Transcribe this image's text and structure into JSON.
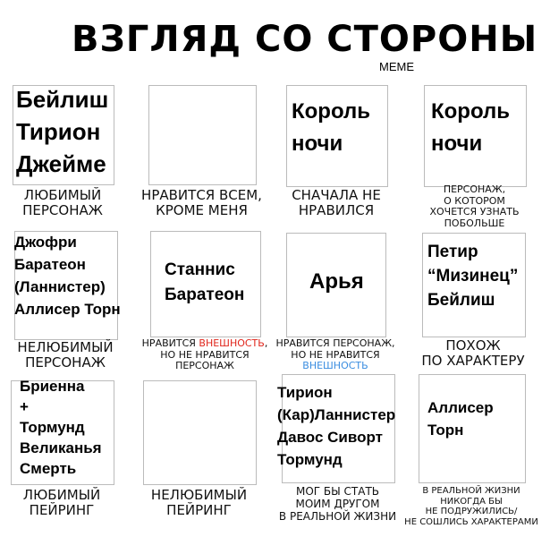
{
  "title": "ВЗГЛЯД СО СТОРОНЫ",
  "subtitle": "МЕМЕ",
  "cells": [
    {
      "lines": [
        "Бейлиш",
        "Тирион",
        "Джейме"
      ],
      "caption": [
        "ЛЮБИМЫЙ",
        "ПЕРСОНАЖ"
      ]
    },
    {
      "lines": [],
      "caption": [
        "НРАВИТСЯ ВСЕМ,",
        "КРОМЕ МЕНЯ"
      ]
    },
    {
      "lines": [
        "Король",
        "ночи"
      ],
      "caption": [
        "СНАЧАЛА НЕ",
        "НРАВИЛСЯ"
      ]
    },
    {
      "lines": [
        "Король",
        "ночи"
      ],
      "caption": [
        "ПЕРСОНАЖ,",
        "О КОТОРОМ",
        "ХОЧЕТСЯ УЗНАТЬ",
        "ПОБОЛЬШЕ"
      ]
    },
    {
      "lines": [
        "Джофри",
        "Баратеон",
        "(Ланнистер)",
        "Аллисер Торн"
      ],
      "caption": [
        "НЕЛЮБИМЫЙ",
        "ПЕРСОНАЖ"
      ]
    },
    {
      "lines": [
        "Станнис",
        "Баратеон"
      ],
      "caption_parts": {
        "a": "НРАВИТСЯ ",
        "b": "ВНЕШНОСТЬ",
        ", c": "",
        "c": ",",
        "d": "НО НЕ НРАВИТСЯ",
        "e": "ПЕРСОНАЖ"
      }
    },
    {
      "lines": [
        "Арья"
      ],
      "caption_parts": {
        "a": "НРАВИТСЯ ПЕРСОНАЖ,",
        "d": "НО НЕ НРАВИТСЯ",
        "b": "ВНЕШНОСТЬ"
      }
    },
    {
      "lines": [
        "Петир",
        "“Мизинец”",
        "Бейлиш"
      ],
      "caption": [
        "ПОХОЖ",
        "ПО ХАРАКТЕРУ"
      ]
    },
    {
      "lines": [
        "Бриенна",
        "+",
        "Тормунд",
        "Великанья",
        "Смерть"
      ],
      "caption": [
        "ЛЮБИМЫЙ",
        "ПЕЙРИНГ"
      ]
    },
    {
      "lines": [],
      "caption": [
        "НЕЛЮБИМЫЙ",
        "ПЕЙРИНГ"
      ]
    },
    {
      "lines": [
        "Тирион",
        "(Кар)Ланнистер",
        "Давос Сиворт",
        "Тормунд"
      ],
      "caption": [
        "МОГ БЫ СТАТЬ",
        "МОИМ ДРУГОМ",
        "В РЕАЛЬНОЙ ЖИЗНИ"
      ]
    },
    {
      "lines": [
        "Аллисер",
        "Торн"
      ],
      "caption": [
        "В РЕАЛЬНОЙ ЖИЗНИ",
        "НИКОГДА БЫ",
        "НЕ ПОДРУЖИЛИСЬ/",
        "НЕ СОШЛИСЬ ХАРАКТЕРАМИ"
      ]
    }
  ],
  "colors": {
    "highlight_red": "#e0251b",
    "highlight_blue": "#3a8de0"
  }
}
